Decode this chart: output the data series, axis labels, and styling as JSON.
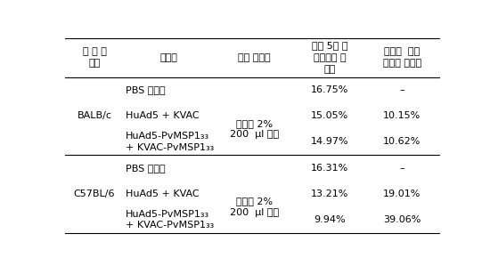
{
  "col_headers": [
    "마 우 스\n계통",
    "실험군",
    "감염 원충률",
    "감염 5일 후\n말초혈액 원\n충률",
    "대조군  대비\n원충률 감소율"
  ],
  "rows": [
    {
      "experiment": "PBS 투여군",
      "day5_rate": "16.75%",
      "reduction": "–"
    },
    {
      "experiment": "HuAd5 + KVAC",
      "day5_rate": "15.05%",
      "reduction": "10.15%"
    },
    {
      "experiment": "HuAd5-PvMSP1₃₃\n+ KVAC-PvMSP1₃₃",
      "day5_rate": "14.97%",
      "reduction": "10.62%"
    },
    {
      "experiment": "PBS 투여군",
      "day5_rate": "16.31%",
      "reduction": "–"
    },
    {
      "experiment": "HuAd5 + KVAC",
      "day5_rate": "13.21%",
      "reduction": "19.01%"
    },
    {
      "experiment": "HuAd5-PvMSP1₃₃\n+ KVAC-PvMSP1₃₃",
      "day5_rate": "9.94%",
      "reduction": "39.06%"
    }
  ],
  "infect_text": "원충률 2%\n200  μl 접종",
  "mouse_labels": [
    "BALB/c",
    "C57BL/6"
  ],
  "day5_values": [
    "16.75%",
    "15.05%",
    "14.97%",
    "16.31%",
    "13.21%",
    "9.94%"
  ],
  "reduction_values": [
    "–",
    "10.15%",
    "10.62%",
    "–",
    "19.01%",
    "39.06%"
  ],
  "font_size": 8.0,
  "header_font_size": 8.0,
  "bg_color": "#ffffff",
  "line_color": "#000000",
  "text_color": "#000000"
}
